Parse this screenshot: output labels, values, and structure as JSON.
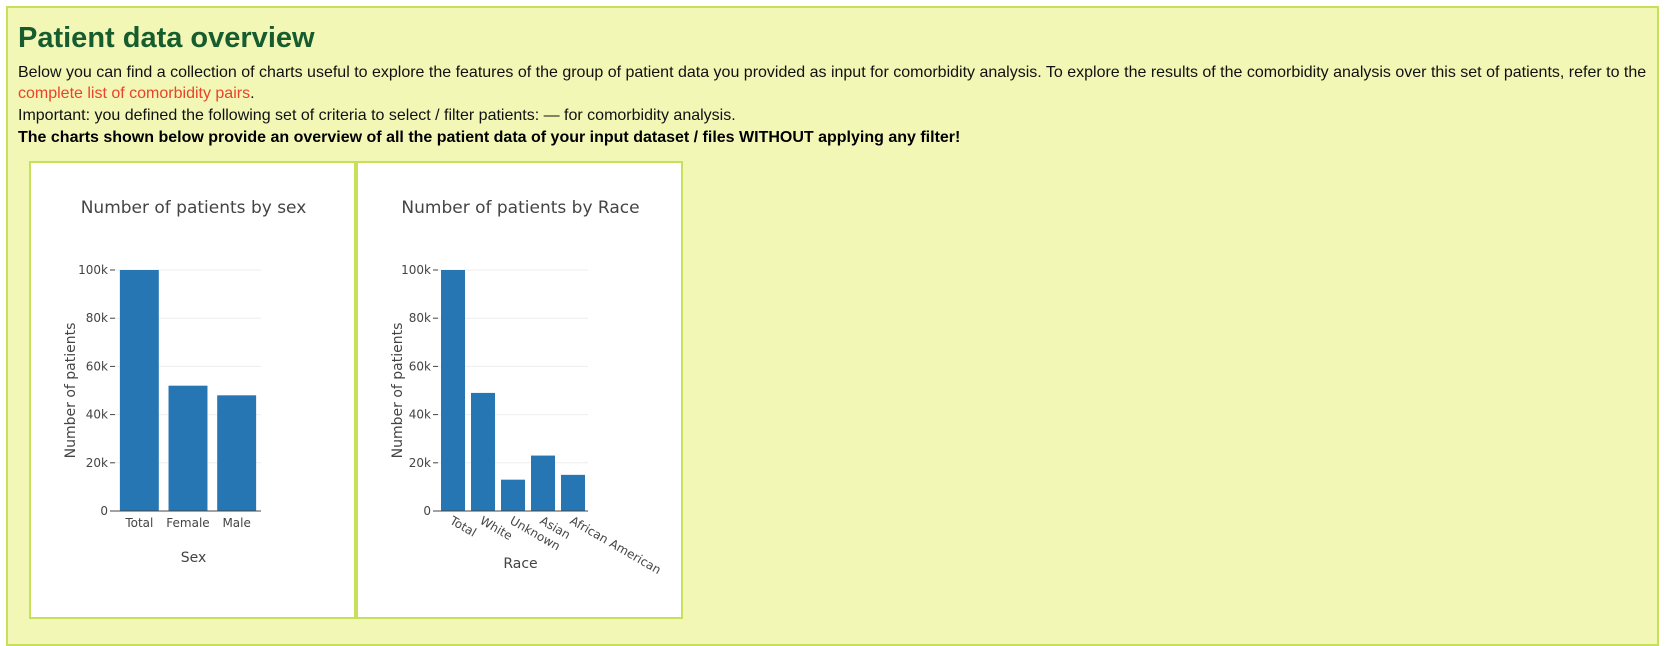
{
  "page": {
    "title": "Patient data overview",
    "intro_text": "Below you can find a collection of charts useful to explore the features of the group of patient data you provided as input for comorbidity analysis. To explore the results of the comorbidity analysis over this set of patients, refer to the ",
    "intro_link": "complete list of comorbidity pairs",
    "intro_end": ".",
    "criteria_text": "Important: you defined the following set of criteria to select / filter patients:  — for comorbidity analysis.",
    "note_text": "The charts shown below provide an overview of all the patient data of your input dataset / files WITHOUT applying any filter!"
  },
  "colors": {
    "bar": "#2676b4",
    "accent_title": "#175c2e",
    "link": "#e8432b",
    "panel_bg": "#f2f7b6",
    "panel_border": "#c6e05a"
  },
  "chart_data": [
    {
      "type": "bar",
      "title": "Number of patients by sex",
      "xlabel": "Sex",
      "ylabel": "Number of patients",
      "categories": [
        "Total",
        "Female",
        "Male"
      ],
      "values": [
        100000,
        52000,
        48000
      ],
      "ylim": [
        0,
        100000
      ],
      "yticks": [
        0,
        20000,
        40000,
        60000,
        80000,
        100000
      ],
      "ytick_labels": [
        "0",
        "20k",
        "40k",
        "60k",
        "80k",
        "100k"
      ],
      "grid": true,
      "rotated_labels": false
    },
    {
      "type": "bar",
      "title": "Number of patients by Race",
      "xlabel": "Race",
      "ylabel": "Number of patients",
      "categories": [
        "Total",
        "White",
        "Unknown",
        "Asian",
        "African American"
      ],
      "values": [
        100000,
        49000,
        13000,
        23000,
        15000
      ],
      "ylim": [
        0,
        100000
      ],
      "yticks": [
        0,
        20000,
        40000,
        60000,
        80000,
        100000
      ],
      "ytick_labels": [
        "0",
        "20k",
        "40k",
        "60k",
        "80k",
        "100k"
      ],
      "grid": true,
      "rotated_labels": true
    }
  ]
}
